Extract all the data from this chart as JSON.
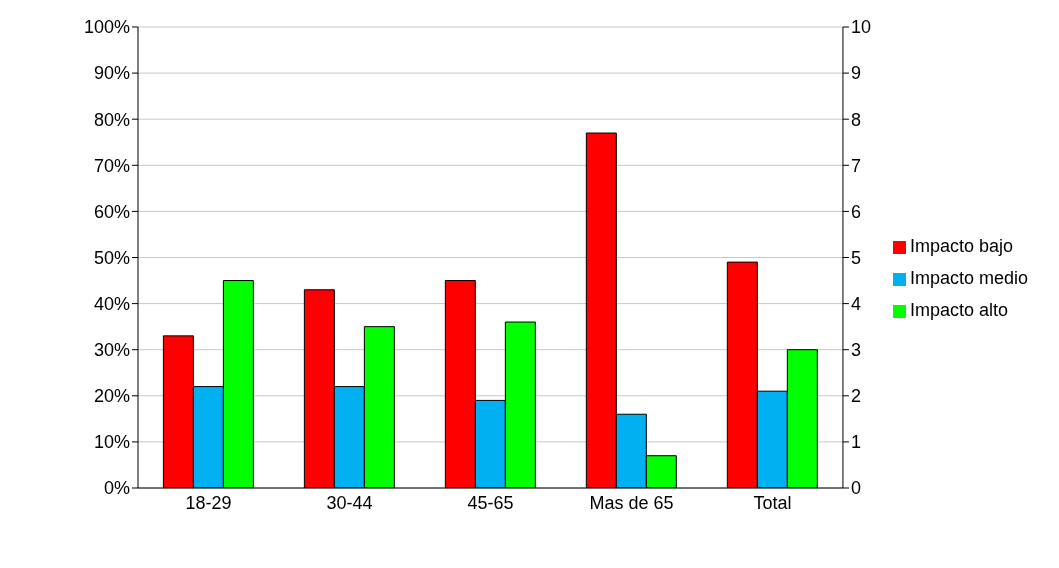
{
  "chart_data": {
    "type": "bar",
    "categories": [
      "18-29",
      "30-44",
      "45-65",
      "Mas de 65",
      "Total"
    ],
    "series": [
      {
        "name": "Impacto bajo",
        "color": "#ff0000",
        "values": [
          33,
          43,
          45,
          77,
          49
        ]
      },
      {
        "name": "Impacto medio",
        "color": "#00b0f0",
        "values": [
          22,
          22,
          19,
          16,
          21
        ]
      },
      {
        "name": "Impacto alto",
        "color": "#00ff00",
        "values": [
          45,
          35,
          36,
          7,
          30
        ]
      }
    ],
    "ylim": [
      0,
      100
    ],
    "yticks": [
      {
        "value": 0,
        "label": "0%"
      },
      {
        "value": 10,
        "label": "10%"
      },
      {
        "value": 20,
        "label": "20%"
      },
      {
        "value": 30,
        "label": "30%"
      },
      {
        "value": 40,
        "label": "40%"
      },
      {
        "value": 50,
        "label": "50%"
      },
      {
        "value": 60,
        "label": "60%"
      },
      {
        "value": 70,
        "label": "70%"
      },
      {
        "value": 80,
        "label": "80%"
      },
      {
        "value": 90,
        "label": "90%"
      },
      {
        "value": 100,
        "label": "100%"
      }
    ],
    "y2lim": [
      0,
      10
    ],
    "y2ticks": [
      0,
      1,
      2,
      3,
      4,
      5,
      6,
      7,
      8,
      9,
      10
    ],
    "grid": "y",
    "legend": "right"
  }
}
